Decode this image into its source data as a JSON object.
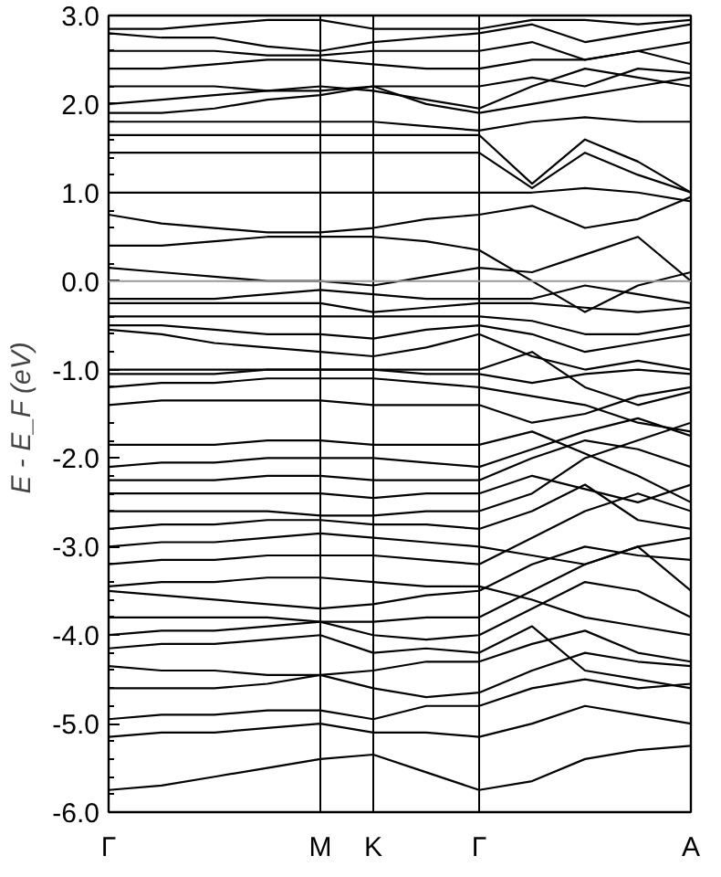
{
  "chart_data": {
    "type": "line",
    "ylabel": "E - E_F  (eV)",
    "categories": [
      "Γ",
      null,
      null,
      null,
      "M",
      "K",
      null,
      "Γ",
      null,
      null,
      null,
      "A"
    ],
    "ylim": [
      -6,
      3
    ],
    "yticks": [
      {
        "value": -6,
        "label": "-6.0"
      },
      {
        "value": -5,
        "label": "-5.0"
      },
      {
        "value": -4,
        "label": "-4.0"
      },
      {
        "value": -3,
        "label": "-3.0"
      },
      {
        "value": -2,
        "label": "-2.0"
      },
      {
        "value": -1,
        "label": "-1.0"
      },
      {
        "value": 0,
        "label": "0.0"
      },
      {
        "value": 1,
        "label": "1.0"
      },
      {
        "value": 2,
        "label": "2.0"
      },
      {
        "value": 3,
        "label": "3.0"
      }
    ],
    "grid": "x",
    "marker": "none",
    "line_style": "solid",
    "ref_lines": [
      {
        "axis": "y",
        "value": 0,
        "color": "#999999"
      }
    ],
    "series": [
      {
        "color": "#000000",
        "values": [
          -5.75,
          -5.7,
          -5.6,
          -5.5,
          -5.4,
          -5.35,
          -5.55,
          -5.75,
          -5.65,
          -5.4,
          -5.3,
          -5.25
        ]
      },
      {
        "color": "#000000",
        "values": [
          -5.15,
          -5.1,
          -5.1,
          -5.05,
          -5.0,
          -5.1,
          -5.1,
          -5.15,
          -5.0,
          -4.8,
          -4.9,
          -5.0
        ]
      },
      {
        "color": "#000000",
        "values": [
          -4.95,
          -4.9,
          -4.9,
          -4.85,
          -4.85,
          -4.95,
          -4.8,
          -4.8,
          -4.6,
          -4.5,
          -4.6,
          -4.55
        ]
      },
      {
        "color": "#000000",
        "values": [
          -4.6,
          -4.6,
          -4.6,
          -4.55,
          -4.45,
          -4.6,
          -4.7,
          -4.65,
          -4.4,
          -4.2,
          -4.3,
          -4.35
        ]
      },
      {
        "color": "#000000",
        "values": [
          -4.35,
          -4.4,
          -4.4,
          -4.45,
          -4.45,
          -4.4,
          -4.3,
          -4.3,
          -4.1,
          -3.95,
          -4.2,
          -4.3
        ]
      },
      {
        "color": "#000000",
        "values": [
          -4.15,
          -4.1,
          -4.1,
          -4.05,
          -4.0,
          -4.2,
          -4.15,
          -4.2,
          -3.9,
          -4.4,
          -4.5,
          -4.6
        ]
      },
      {
        "color": "#000000",
        "values": [
          -4.0,
          -3.95,
          -3.95,
          -3.9,
          -3.85,
          -4.0,
          -4.05,
          -4.0,
          -3.7,
          -3.4,
          -3.5,
          -3.8
        ]
      },
      {
        "color": "#000000",
        "values": [
          -3.8,
          -3.8,
          -3.8,
          -3.8,
          -3.85,
          -3.85,
          -3.8,
          -3.8,
          -3.5,
          -3.2,
          -3.0,
          -3.5
        ]
      },
      {
        "color": "#000000",
        "values": [
          -3.5,
          -3.55,
          -3.6,
          -3.65,
          -3.7,
          -3.65,
          -3.55,
          -3.5,
          -3.2,
          -3.0,
          -3.1,
          -3.15
        ]
      },
      {
        "color": "#000000",
        "values": [
          -3.45,
          -3.4,
          -3.4,
          -3.35,
          -3.35,
          -3.4,
          -3.45,
          -3.45,
          -3.6,
          -3.8,
          -3.9,
          -4.0
        ]
      },
      {
        "color": "#000000",
        "values": [
          -3.2,
          -3.15,
          -3.15,
          -3.1,
          -3.1,
          -3.1,
          -3.15,
          -3.2,
          -2.9,
          -2.6,
          -2.4,
          -2.6
        ]
      },
      {
        "color": "#000000",
        "values": [
          -3.0,
          -2.95,
          -2.95,
          -2.9,
          -2.85,
          -2.9,
          -2.95,
          -3.0,
          -3.1,
          -3.2,
          -3.0,
          -2.9
        ]
      },
      {
        "color": "#000000",
        "values": [
          -2.8,
          -2.75,
          -2.75,
          -2.7,
          -2.7,
          -2.75,
          -2.75,
          -2.8,
          -2.6,
          -2.3,
          -2.7,
          -2.8
        ]
      },
      {
        "color": "#000000",
        "values": [
          -2.6,
          -2.6,
          -2.6,
          -2.6,
          -2.65,
          -2.65,
          -2.6,
          -2.6,
          -2.4,
          -2.0,
          -1.8,
          -1.6
        ]
      },
      {
        "color": "#000000",
        "values": [
          -2.4,
          -2.4,
          -2.4,
          -2.4,
          -2.4,
          -2.45,
          -2.4,
          -2.4,
          -2.2,
          -2.35,
          -2.5,
          -2.3
        ]
      },
      {
        "color": "#000000",
        "values": [
          -2.25,
          -2.25,
          -2.25,
          -2.2,
          -2.2,
          -2.25,
          -2.25,
          -2.25,
          -2.0,
          -1.8,
          -1.9,
          -2.1
        ]
      },
      {
        "color": "#000000",
        "values": [
          -2.1,
          -2.05,
          -2.05,
          -2.0,
          -2.0,
          -2.0,
          -2.05,
          -2.1,
          -1.9,
          -1.7,
          -1.55,
          -1.75
        ]
      },
      {
        "color": "#000000",
        "values": [
          -1.85,
          -1.85,
          -1.85,
          -1.8,
          -1.8,
          -1.85,
          -1.85,
          -1.85,
          -1.7,
          -1.95,
          -2.2,
          -2.5
        ]
      },
      {
        "color": "#000000",
        "values": [
          -1.4,
          -1.35,
          -1.35,
          -1.35,
          -1.35,
          -1.4,
          -1.4,
          -1.4,
          -1.6,
          -1.5,
          -1.3,
          -1.2
        ]
      },
      {
        "color": "#000000",
        "values": [
          -1.2,
          -1.15,
          -1.15,
          -1.1,
          -1.1,
          -1.1,
          -1.15,
          -1.2,
          -1.3,
          -1.4,
          -1.6,
          -1.7
        ]
      },
      {
        "color": "#000000",
        "values": [
          -1.05,
          -1.05,
          -1.05,
          -1.0,
          -1.0,
          -1.0,
          -1.05,
          -1.05,
          -1.15,
          -1.05,
          -1.0,
          -1.05
        ]
      },
      {
        "color": "#000000",
        "values": [
          -1.0,
          -1.0,
          -1.0,
          -1.0,
          -1.0,
          -1.0,
          -1.0,
          -1.0,
          -0.8,
          -1.2,
          -1.4,
          -1.25
        ]
      },
      {
        "color": "#000000",
        "values": [
          -0.55,
          -0.6,
          -0.7,
          -0.75,
          -0.8,
          -0.85,
          -0.75,
          -0.6,
          -0.85,
          -1.0,
          -0.9,
          -1.0
        ]
      },
      {
        "color": "#000000",
        "values": [
          -0.5,
          -0.5,
          -0.55,
          -0.6,
          -0.6,
          -0.65,
          -0.55,
          -0.5,
          -0.6,
          -0.8,
          -0.7,
          -0.6
        ]
      },
      {
        "color": "#000000",
        "values": [
          -0.4,
          -0.4,
          -0.4,
          -0.4,
          -0.4,
          -0.4,
          -0.4,
          -0.4,
          -0.45,
          -0.6,
          -0.6,
          -0.5
        ]
      },
      {
        "color": "#000000",
        "values": [
          -0.25,
          -0.25,
          -0.25,
          -0.25,
          -0.25,
          -0.35,
          -0.3,
          -0.25,
          -0.25,
          -0.3,
          -0.35,
          -0.3
        ]
      },
      {
        "color": "#000000",
        "values": [
          -0.2,
          -0.2,
          -0.2,
          -0.15,
          -0.1,
          -0.15,
          -0.2,
          -0.2,
          -0.2,
          -0.05,
          -0.15,
          -0.25
        ]
      },
      {
        "color": "#000000",
        "values": [
          0.15,
          0.1,
          0.05,
          0.0,
          0.0,
          -0.05,
          0.05,
          0.15,
          0.1,
          0.3,
          0.5,
          0.0
        ]
      },
      {
        "color": "#000000",
        "values": [
          0.4,
          0.4,
          0.45,
          0.5,
          0.5,
          0.5,
          0.45,
          0.35,
          0.0,
          -0.35,
          -0.05,
          0.1
        ]
      },
      {
        "color": "#000000",
        "values": [
          0.75,
          0.65,
          0.6,
          0.55,
          0.55,
          0.6,
          0.7,
          0.75,
          0.85,
          0.6,
          0.7,
          0.95
        ]
      },
      {
        "color": "#000000",
        "values": [
          1.0,
          1.0,
          1.0,
          1.0,
          1.0,
          1.0,
          1.0,
          1.0,
          1.0,
          1.05,
          1.0,
          0.9
        ]
      },
      {
        "color": "#000000",
        "values": [
          1.45,
          1.45,
          1.45,
          1.45,
          1.45,
          1.45,
          1.45,
          1.45,
          1.05,
          1.45,
          1.2,
          1.0
        ]
      },
      {
        "color": "#000000",
        "values": [
          1.65,
          1.65,
          1.65,
          1.65,
          1.65,
          1.65,
          1.65,
          1.65,
          1.1,
          1.6,
          1.35,
          1.0
        ]
      },
      {
        "color": "#000000",
        "values": [
          1.8,
          1.8,
          1.8,
          1.8,
          1.8,
          1.8,
          1.75,
          1.7,
          1.8,
          1.85,
          1.8,
          1.8
        ]
      },
      {
        "color": "#000000",
        "values": [
          1.9,
          1.9,
          1.95,
          2.05,
          2.1,
          2.2,
          2.0,
          1.9,
          2.0,
          2.1,
          2.2,
          2.3
        ]
      },
      {
        "color": "#000000",
        "values": [
          2.0,
          2.05,
          2.1,
          2.15,
          2.2,
          2.15,
          2.05,
          1.95,
          2.2,
          2.4,
          2.3,
          2.2
        ]
      },
      {
        "color": "#000000",
        "values": [
          2.2,
          2.2,
          2.2,
          2.15,
          2.15,
          2.2,
          2.2,
          2.2,
          2.3,
          2.2,
          2.4,
          2.35
        ]
      },
      {
        "color": "#000000",
        "values": [
          2.4,
          2.4,
          2.45,
          2.5,
          2.5,
          2.45,
          2.4,
          2.4,
          2.5,
          2.5,
          2.6,
          2.45
        ]
      },
      {
        "color": "#000000",
        "values": [
          2.6,
          2.6,
          2.6,
          2.55,
          2.55,
          2.6,
          2.6,
          2.6,
          2.7,
          2.5,
          2.6,
          2.7
        ]
      },
      {
        "color": "#000000",
        "values": [
          2.8,
          2.75,
          2.75,
          2.65,
          2.6,
          2.7,
          2.75,
          2.8,
          2.9,
          2.7,
          2.8,
          2.9
        ]
      },
      {
        "color": "#000000",
        "values": [
          2.85,
          2.85,
          2.9,
          2.95,
          2.95,
          2.85,
          2.85,
          2.85,
          2.95,
          2.95,
          2.9,
          2.95
        ]
      }
    ]
  }
}
